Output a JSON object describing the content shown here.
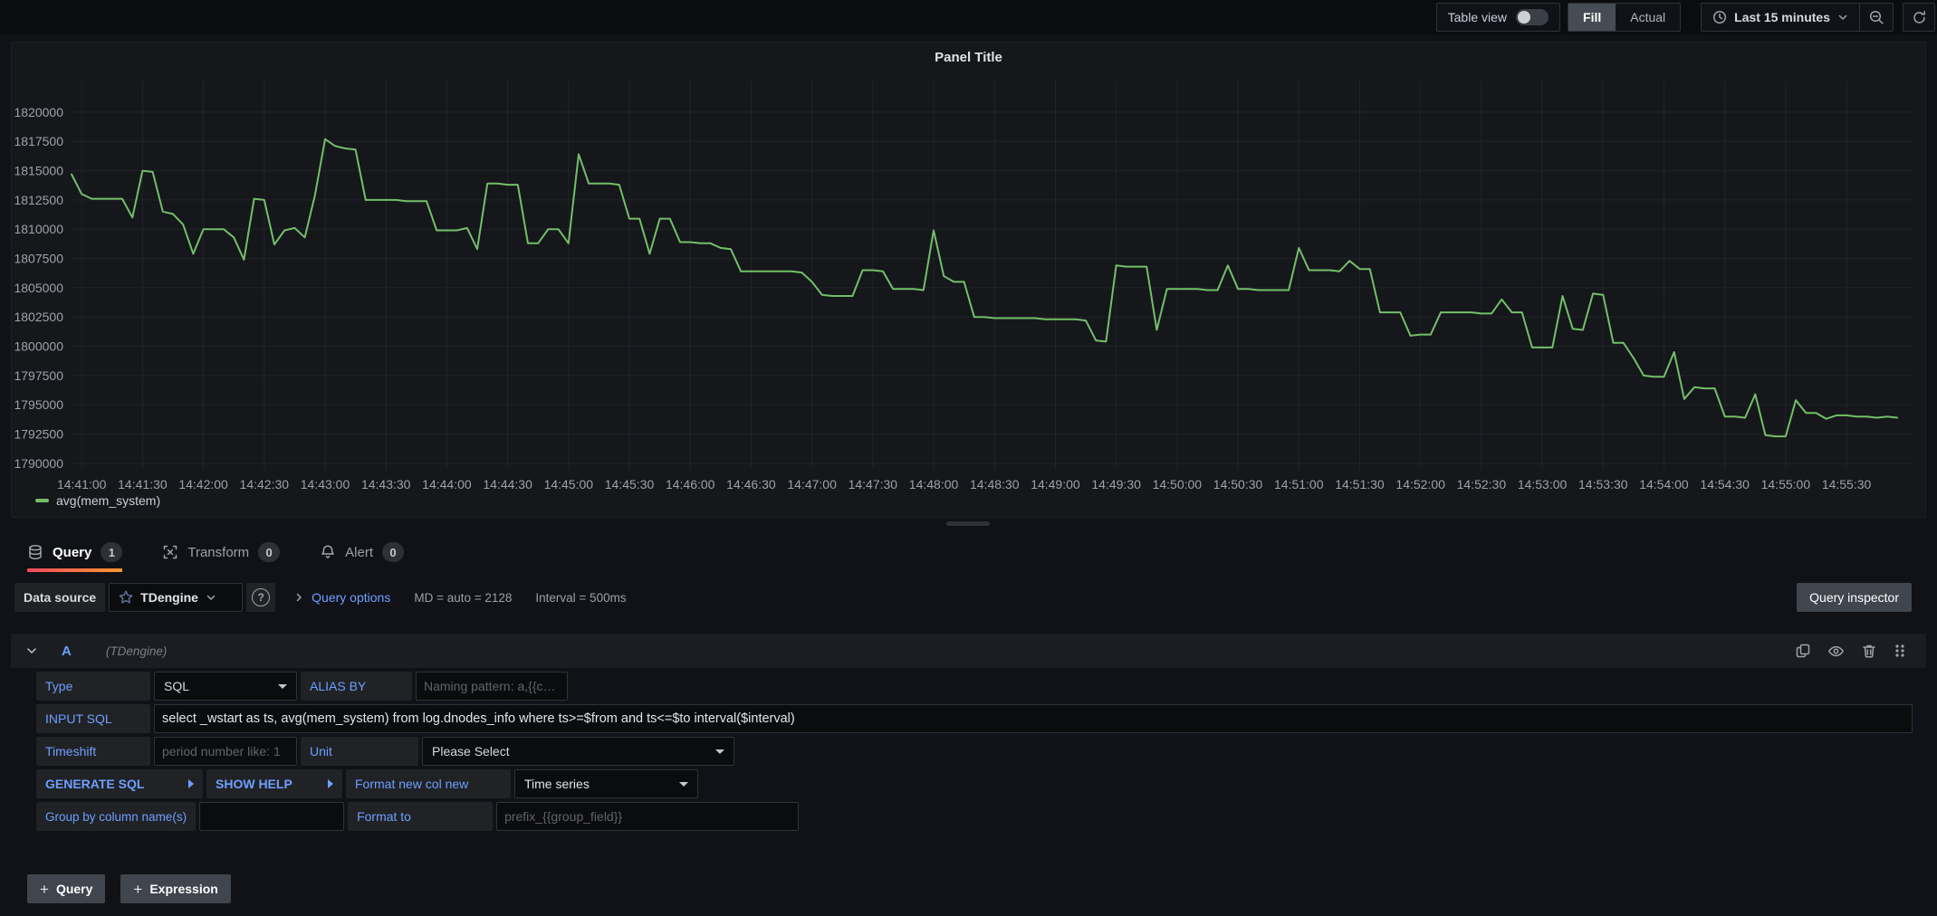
{
  "header": {
    "table_view_label": "Table view",
    "fill_label": "Fill",
    "actual_label": "Actual",
    "time_range_label": "Last 15 minutes"
  },
  "panel": {
    "title": "Panel Title",
    "legend_label": "avg(mem_system)"
  },
  "chart_data": {
    "type": "line",
    "title": "Panel Title",
    "series_name": "avg(mem_system)",
    "color": "#73bf69",
    "grid": true,
    "legend_position": "bottom-left",
    "xlabel": "",
    "ylabel": "",
    "x_domain": [
      "14:40:55",
      "14:56:03"
    ],
    "x_step_seconds": 5,
    "x_ticks": [
      "14:41:00",
      "14:41:30",
      "14:42:00",
      "14:42:30",
      "14:43:00",
      "14:43:30",
      "14:44:00",
      "14:44:30",
      "14:45:00",
      "14:45:30",
      "14:46:00",
      "14:46:30",
      "14:47:00",
      "14:47:30",
      "14:48:00",
      "14:48:30",
      "14:49:00",
      "14:49:30",
      "14:50:00",
      "14:50:30",
      "14:51:00",
      "14:51:30",
      "14:52:00",
      "14:52:30",
      "14:53:00",
      "14:53:30",
      "14:54:00",
      "14:54:30",
      "14:55:00",
      "14:55:30"
    ],
    "y_ticks": [
      1790000,
      1792500,
      1795000,
      1797500,
      1800000,
      1802500,
      1805000,
      1807500,
      1810000,
      1812500,
      1815000,
      1817500,
      1820000
    ],
    "ylim": [
      1789450,
      1822700
    ],
    "values": [
      1814700,
      1813000,
      1812600,
      1812600,
      1812600,
      1812600,
      1811000,
      1815000,
      1814900,
      1811500,
      1811300,
      1810400,
      1807900,
      1810000,
      1810000,
      1810000,
      1809300,
      1807400,
      1812600,
      1812500,
      1808700,
      1809900,
      1810100,
      1809300,
      1812900,
      1817700,
      1817100,
      1816900,
      1816800,
      1812500,
      1812500,
      1812500,
      1812500,
      1812400,
      1812400,
      1812400,
      1809900,
      1809900,
      1809900,
      1810100,
      1808300,
      1813900,
      1813900,
      1813800,
      1813800,
      1808800,
      1808800,
      1810000,
      1810000,
      1808800,
      1816400,
      1813900,
      1813900,
      1813900,
      1813800,
      1810900,
      1810900,
      1807900,
      1810900,
      1810900,
      1808900,
      1808900,
      1808800,
      1808800,
      1808400,
      1808300,
      1806400,
      1806400,
      1806400,
      1806400,
      1806400,
      1806400,
      1806300,
      1805500,
      1804400,
      1804300,
      1804300,
      1804300,
      1806500,
      1806500,
      1806400,
      1804900,
      1804900,
      1804900,
      1804800,
      1809900,
      1806000,
      1805500,
      1805500,
      1802500,
      1802500,
      1802400,
      1802400,
      1802400,
      1802400,
      1802400,
      1802300,
      1802300,
      1802300,
      1802300,
      1802200,
      1800500,
      1800400,
      1806900,
      1806800,
      1806800,
      1806800,
      1801400,
      1804900,
      1804900,
      1804900,
      1804900,
      1804800,
      1804800,
      1806900,
      1804900,
      1804900,
      1804800,
      1804800,
      1804800,
      1804800,
      1808400,
      1806500,
      1806500,
      1806500,
      1806400,
      1807300,
      1806600,
      1806600,
      1802900,
      1802900,
      1802900,
      1800900,
      1801000,
      1801000,
      1802900,
      1802900,
      1802900,
      1802900,
      1802800,
      1802800,
      1804000,
      1802900,
      1802900,
      1799900,
      1799900,
      1799900,
      1804300,
      1801500,
      1801400,
      1804500,
      1804400,
      1800300,
      1800300,
      1799000,
      1797500,
      1797400,
      1797400,
      1799500,
      1795500,
      1796500,
      1796400,
      1796400,
      1794000,
      1794000,
      1793900,
      1795900,
      1792400,
      1792300,
      1792300,
      1795400,
      1794300,
      1794300,
      1793800,
      1794100,
      1794100,
      1794000,
      1794000,
      1793900,
      1794000,
      1793900
    ]
  },
  "tabs": [
    {
      "label": "Query",
      "badge": "1"
    },
    {
      "label": "Transform",
      "badge": "0"
    },
    {
      "label": "Alert",
      "badge": "0"
    }
  ],
  "datasource_bar": {
    "label": "Data source",
    "value": "TDengine",
    "help_glyph": "?",
    "query_options_label": "Query options",
    "summary_md": "MD = auto = 2128",
    "summary_interval": "Interval = 500ms",
    "query_inspector_label": "Query inspector"
  },
  "query_row": {
    "ref_id": "A",
    "datasource_hint": "(TDengine)",
    "fields": {
      "type_label": "Type",
      "type_value": "SQL",
      "alias_by_label": "ALIAS BY",
      "alias_by_placeholder": "Naming pattern: a,{{c…",
      "input_sql_label": "INPUT SQL",
      "input_sql_value": "select _wstart as ts, avg(mem_system) from log.dnodes_info where ts>=$from and ts<=$to interval($interval)",
      "timeshift_label": "Timeshift",
      "timeshift_placeholder": "period number like: 1",
      "unit_label": "Unit",
      "unit_value": "Please Select",
      "generate_sql_label": "GENERATE SQL",
      "show_help_label": "SHOW HELP",
      "format_label": "Format new col new",
      "format_value": "Time series",
      "group_by_label": "Group by column name(s)",
      "format_to_label": "Format to",
      "format_to_placeholder": "prefix_{{group_field}}"
    }
  },
  "footer": {
    "plus_glyph": "+",
    "add_query_label": "Query",
    "add_expression_label": "Expression"
  }
}
